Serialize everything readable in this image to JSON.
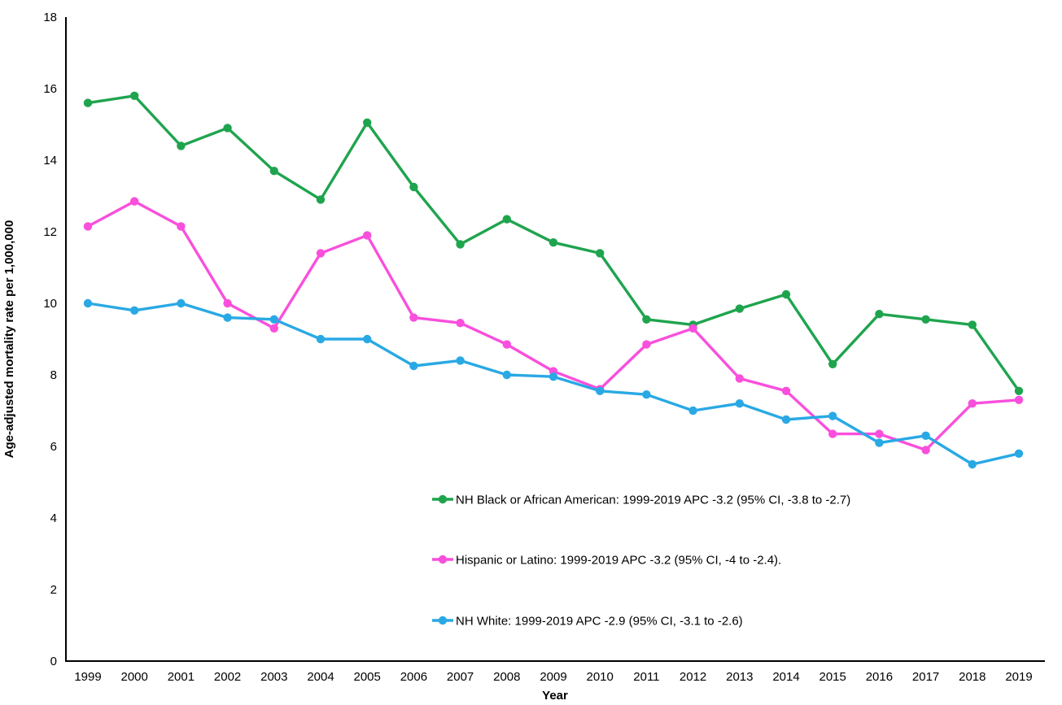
{
  "figure": {
    "background_color": "#ffffff",
    "axis_color": "#000000"
  },
  "chart_data": {
    "type": "line",
    "title": "",
    "xlabel": "Year",
    "ylabel": "Age-adjusted mortality rate per 1,000,000",
    "categories": [
      "1999",
      "2000",
      "2001",
      "2002",
      "2003",
      "2004",
      "2005",
      "2006",
      "2007",
      "2008",
      "2009",
      "2010",
      "2011",
      "2012",
      "2013",
      "2014",
      "2015",
      "2016",
      "2017",
      "2018",
      "2019"
    ],
    "ylim": [
      0,
      18
    ],
    "ytick_step": 2,
    "ytick_labels": [
      "0",
      "2",
      "4",
      "6",
      "8",
      "10",
      "12",
      "14",
      "16",
      "18"
    ],
    "grid": false,
    "legend_position": "inside-lower-center",
    "marker": "circle",
    "series": [
      {
        "name": "NH Black or African American",
        "legend_label": "NH Black or African American: 1999-2019 APC -3.2 (95% CI, -3.8 to -2.7)",
        "color": "#1FA44E",
        "values": [
          15.6,
          15.8,
          14.4,
          14.9,
          13.7,
          12.9,
          15.05,
          13.25,
          11.65,
          12.35,
          11.7,
          11.4,
          9.55,
          9.4,
          9.85,
          10.25,
          8.3,
          9.7,
          9.55,
          9.4,
          7.55
        ]
      },
      {
        "name": "Hispanic or Latino",
        "legend_label": "Hispanic or Latino: 1999-2019 APC -3.2 (95% CI, -4 to -2.4).",
        "color": "#F94FDC",
        "values": [
          12.15,
          12.85,
          12.15,
          10.0,
          9.3,
          11.4,
          11.9,
          9.6,
          9.45,
          8.85,
          8.1,
          7.6,
          8.85,
          9.3,
          7.9,
          7.55,
          6.35,
          6.35,
          5.9,
          7.2,
          7.3
        ]
      },
      {
        "name": "NH White",
        "legend_label": "NH White: 1999-2019 APC -2.9 (95% CI, -3.1 to -2.6)",
        "color": "#29A9E4",
        "values": [
          10.0,
          9.8,
          10.0,
          9.6,
          9.55,
          9.0,
          9.0,
          8.25,
          8.4,
          8.0,
          7.95,
          7.55,
          7.45,
          7.0,
          7.2,
          6.75,
          6.85,
          6.1,
          6.3,
          5.5,
          5.8
        ]
      }
    ]
  }
}
